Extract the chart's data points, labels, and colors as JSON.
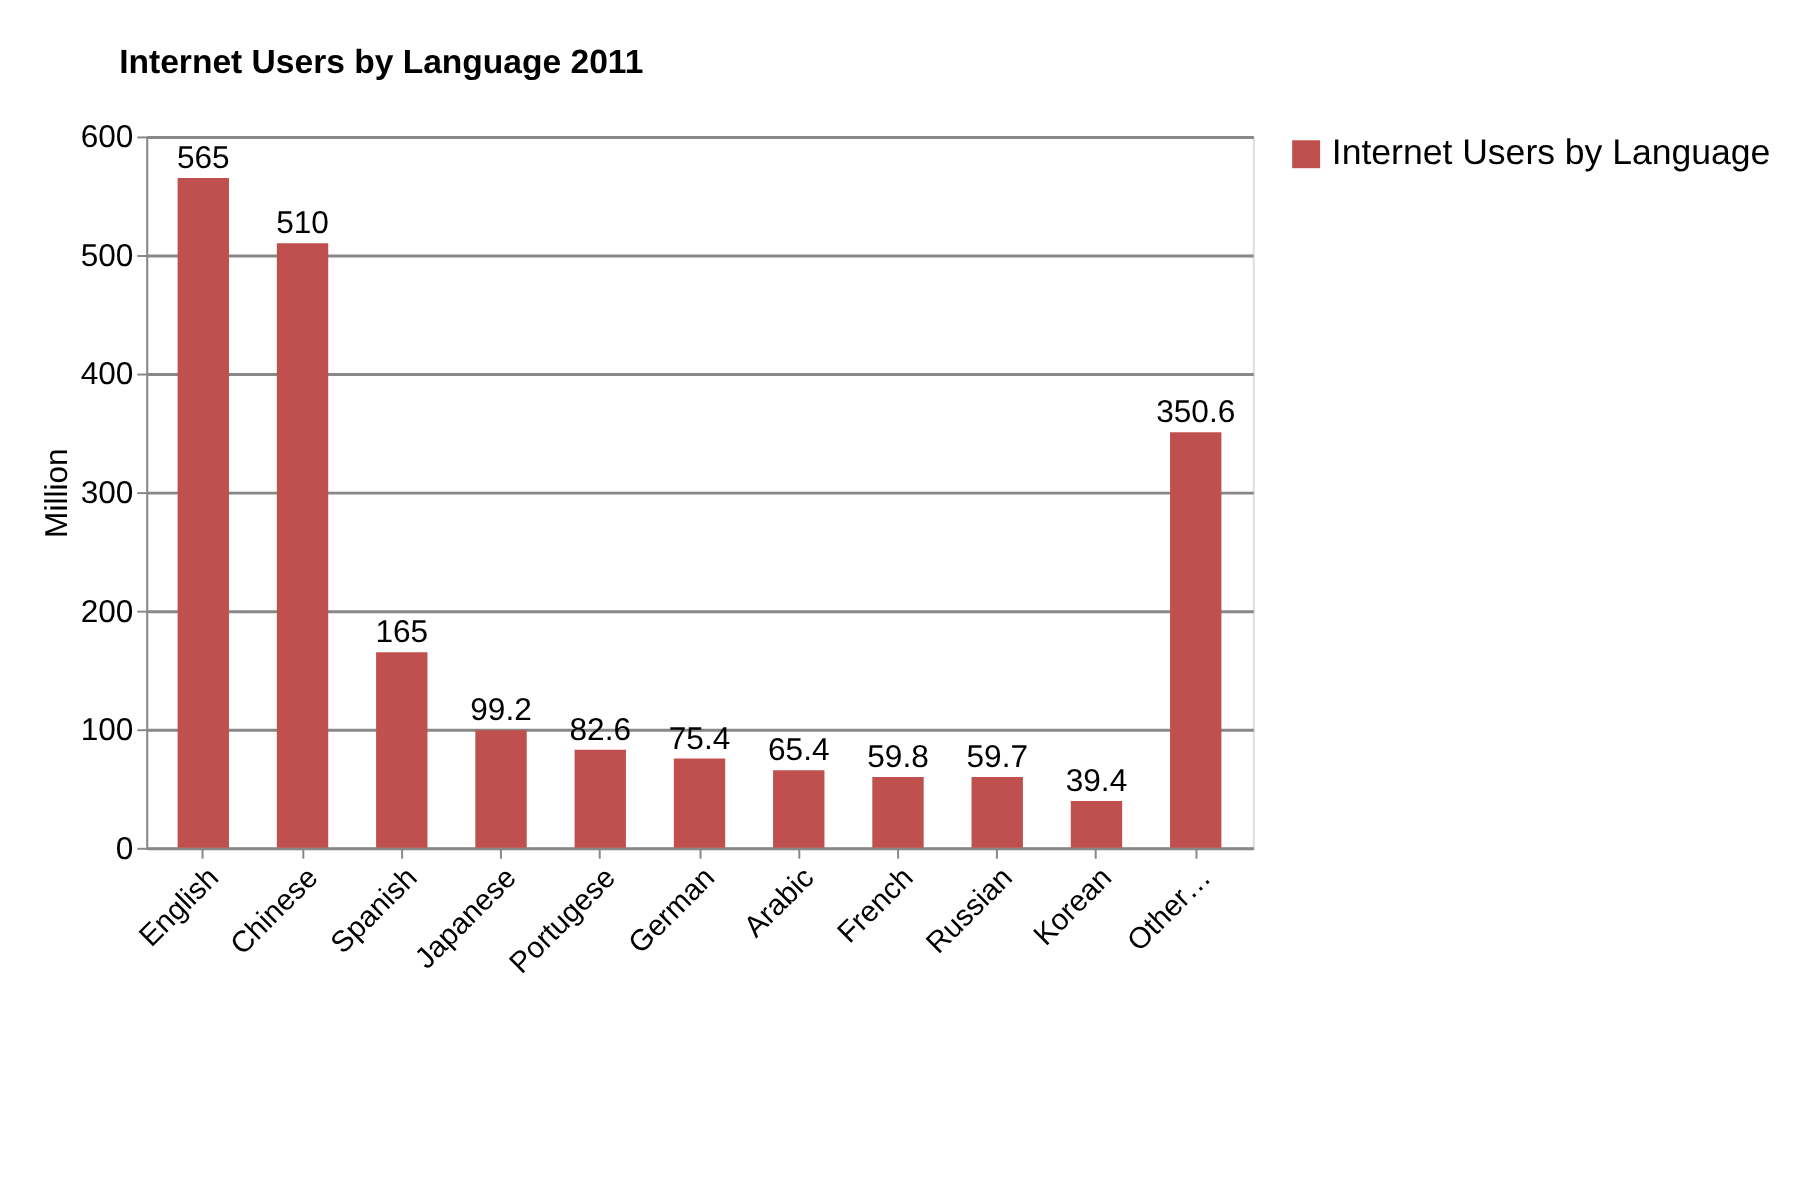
{
  "chart_data": {
    "type": "bar",
    "title": "Internet Users by Language 2011",
    "ylabel": "Million",
    "categories": [
      "English",
      "Chinese",
      "Spanish",
      "Japanese",
      "Portugese",
      "German",
      "Arabic",
      "French",
      "Russian",
      "Korean",
      "Other…"
    ],
    "series": [
      {
        "name": "Internet Users by Language",
        "color": "#c0504d",
        "values": [
          565,
          510,
          165,
          99.2,
          82.6,
          75.4,
          65.4,
          59.8,
          59.7,
          39.4,
          350.6
        ]
      }
    ],
    "ylim": [
      0,
      600
    ],
    "yticks": [
      0,
      100,
      200,
      300,
      400,
      500,
      600
    ],
    "grid": "y",
    "legend": "right",
    "data_labels": true
  }
}
